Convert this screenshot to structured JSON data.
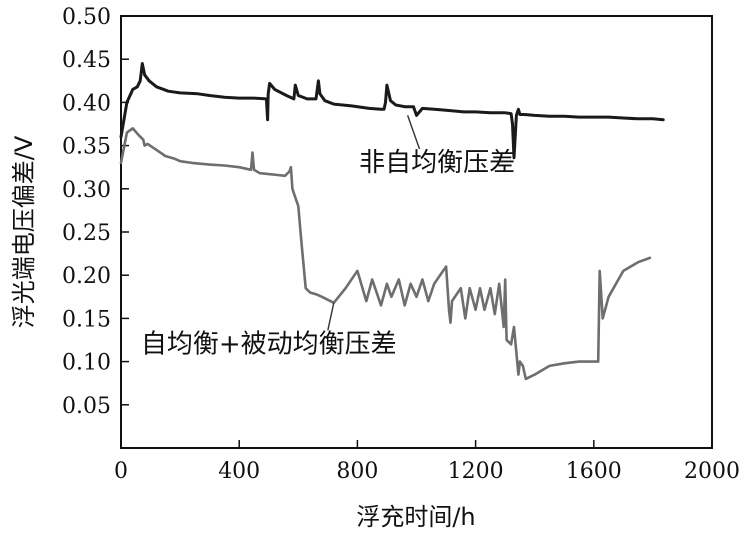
{
  "chart_data": {
    "type": "line",
    "xlabel": "浮充时间/h",
    "ylabel": "浮光端电压偏差/V",
    "xlim": [
      0,
      2000
    ],
    "ylim": [
      0,
      0.5
    ],
    "x_ticks": [
      0,
      400,
      800,
      1200,
      1600,
      2000
    ],
    "y_ticks": [
      0.05,
      0.1,
      0.15,
      0.2,
      0.25,
      0.3,
      0.35,
      0.4,
      0.45,
      0.5
    ],
    "x_tick_labels": [
      "0",
      "400",
      "800",
      "1200",
      "1600",
      "2000"
    ],
    "y_tick_labels": [
      "0.05",
      "0.10",
      "0.15",
      "0.20",
      "0.25",
      "0.30",
      "0.35",
      "0.40",
      "0.45",
      "0.50"
    ],
    "grid": false,
    "series": [
      {
        "name": "非自均衡压差",
        "color": "#1a1a1a",
        "x": [
          0,
          20,
          40,
          55,
          65,
          72,
          80,
          95,
          120,
          160,
          200,
          260,
          300,
          350,
          400,
          450,
          492,
          496,
          498,
          503,
          520,
          560,
          585,
          590,
          600,
          630,
          660,
          668,
          673,
          690,
          720,
          780,
          840,
          880,
          890,
          895,
          900,
          912,
          930,
          960,
          990,
          1000,
          1020,
          1060,
          1100,
          1160,
          1200,
          1250,
          1300,
          1320,
          1325,
          1330,
          1338,
          1345,
          1350,
          1365,
          1400,
          1450,
          1500,
          1550,
          1600,
          1650,
          1700,
          1750,
          1800,
          1835
        ],
        "y": [
          0.36,
          0.4,
          0.415,
          0.418,
          0.425,
          0.445,
          0.432,
          0.425,
          0.418,
          0.413,
          0.411,
          0.41,
          0.408,
          0.406,
          0.405,
          0.405,
          0.404,
          0.38,
          0.41,
          0.422,
          0.415,
          0.408,
          0.404,
          0.42,
          0.408,
          0.404,
          0.404,
          0.425,
          0.41,
          0.402,
          0.398,
          0.396,
          0.393,
          0.392,
          0.392,
          0.4,
          0.42,
          0.402,
          0.397,
          0.395,
          0.395,
          0.385,
          0.393,
          0.392,
          0.391,
          0.389,
          0.389,
          0.388,
          0.388,
          0.387,
          0.375,
          0.336,
          0.385,
          0.392,
          0.386,
          0.386,
          0.385,
          0.384,
          0.384,
          0.383,
          0.383,
          0.383,
          0.382,
          0.381,
          0.381,
          0.38
        ]
      },
      {
        "name": "自均衡+被动均衡压差",
        "color": "#6e6e6e",
        "x": [
          0,
          20,
          40,
          60,
          75,
          80,
          90,
          120,
          150,
          180,
          200,
          240,
          300,
          350,
          400,
          440,
          445,
          450,
          470,
          500,
          530,
          555,
          570,
          575,
          580,
          590,
          600,
          610,
          625,
          640,
          660,
          680,
          720,
          760,
          790,
          800,
          830,
          850,
          880,
          900,
          915,
          940,
          960,
          980,
          1000,
          1020,
          1040,
          1060,
          1080,
          1100,
          1110,
          1115,
          1120,
          1150,
          1165,
          1180,
          1200,
          1215,
          1230,
          1250,
          1265,
          1280,
          1295,
          1300,
          1305,
          1320,
          1330,
          1345,
          1350,
          1360,
          1370,
          1400,
          1450,
          1500,
          1550,
          1600,
          1615,
          1620,
          1630,
          1650,
          1700,
          1750,
          1790
        ],
        "y": [
          0.33,
          0.365,
          0.37,
          0.362,
          0.357,
          0.35,
          0.352,
          0.345,
          0.338,
          0.335,
          0.332,
          0.33,
          0.328,
          0.327,
          0.325,
          0.322,
          0.342,
          0.322,
          0.318,
          0.317,
          0.316,
          0.315,
          0.32,
          0.325,
          0.3,
          0.29,
          0.28,
          0.24,
          0.185,
          0.18,
          0.178,
          0.175,
          0.168,
          0.185,
          0.2,
          0.205,
          0.17,
          0.195,
          0.165,
          0.19,
          0.175,
          0.195,
          0.165,
          0.19,
          0.175,
          0.195,
          0.17,
          0.19,
          0.2,
          0.21,
          0.16,
          0.145,
          0.17,
          0.185,
          0.15,
          0.185,
          0.16,
          0.185,
          0.16,
          0.185,
          0.155,
          0.19,
          0.14,
          0.195,
          0.125,
          0.12,
          0.14,
          0.085,
          0.1,
          0.095,
          0.08,
          0.085,
          0.095,
          0.098,
          0.1,
          0.1,
          0.1,
          0.205,
          0.15,
          0.175,
          0.205,
          0.215,
          0.22
        ]
      }
    ],
    "annotations": [
      {
        "text": "非自均衡压差",
        "x": 1070,
        "y": 0.33,
        "arrow_to": [
          970,
          0.385
        ]
      },
      {
        "text": "自均衡+被动均衡压差",
        "x": 500,
        "y": 0.12,
        "arrow_to": [
          720,
          0.168
        ]
      }
    ]
  }
}
